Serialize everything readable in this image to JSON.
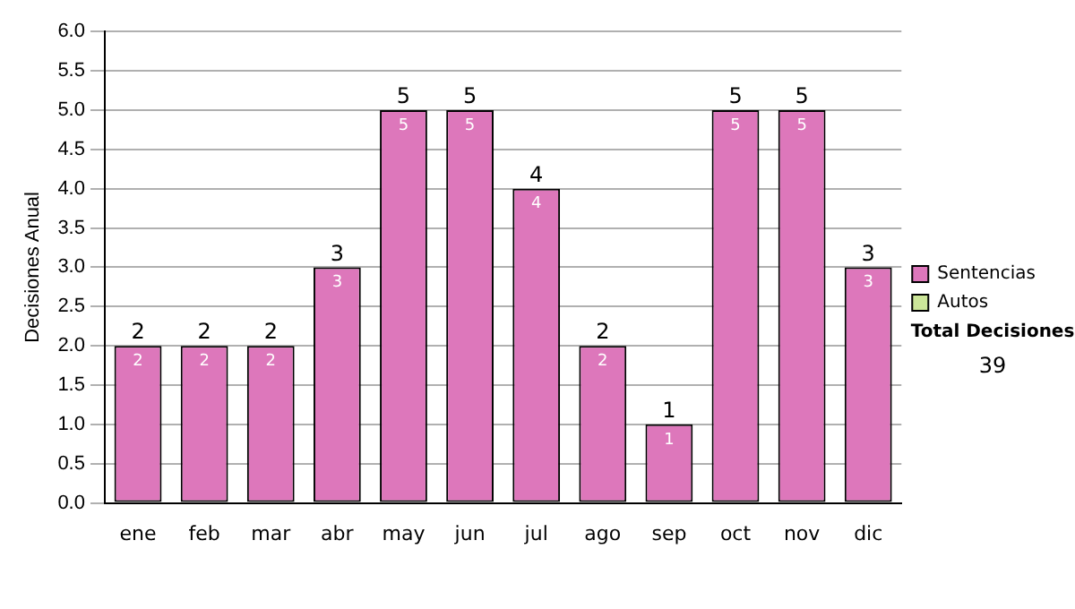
{
  "chart_data": {
    "type": "bar",
    "stacked": true,
    "ylabel": "Decisiones Anual",
    "categories": [
      "ene",
      "feb",
      "mar",
      "abr",
      "may",
      "jun",
      "jul",
      "ago",
      "sep",
      "oct",
      "nov",
      "dic"
    ],
    "series": [
      {
        "name": "Sentencias",
        "color": "#dd77bb",
        "values": [
          2,
          2,
          2,
          3,
          5,
          5,
          4,
          2,
          1,
          5,
          5,
          3
        ],
        "value_labels": [
          "2",
          "2",
          "2",
          "3",
          "5",
          "5",
          "4",
          "2",
          "1",
          "5",
          "5",
          "3"
        ]
      },
      {
        "name": "Autos",
        "color": "#cce699",
        "values": [
          0,
          0,
          0,
          0,
          0,
          0,
          0,
          0,
          0,
          0,
          0,
          0
        ]
      }
    ],
    "totals": [
      "2",
      "2",
      "2",
      "3",
      "5",
      "5",
      "4",
      "2",
      "1",
      "5",
      "5",
      "3"
    ],
    "ylim": [
      0,
      6
    ],
    "yticks": [
      {
        "value": 0,
        "label": "0.0"
      },
      0.5,
      {
        "value": 1,
        "label": "1.0"
      },
      1.5,
      {
        "value": 2,
        "label": "2.0"
      },
      2.5,
      {
        "value": 3,
        "label": "3.0"
      },
      3.5,
      {
        "value": 4,
        "label": "4.0"
      },
      4.5,
      {
        "value": 5,
        "label": "5.0"
      },
      5.5,
      {
        "value": 6,
        "label": "6.0"
      }
    ],
    "grid": "y",
    "legend": "right",
    "annotations": [
      "Total Decisiones",
      "39"
    ]
  }
}
